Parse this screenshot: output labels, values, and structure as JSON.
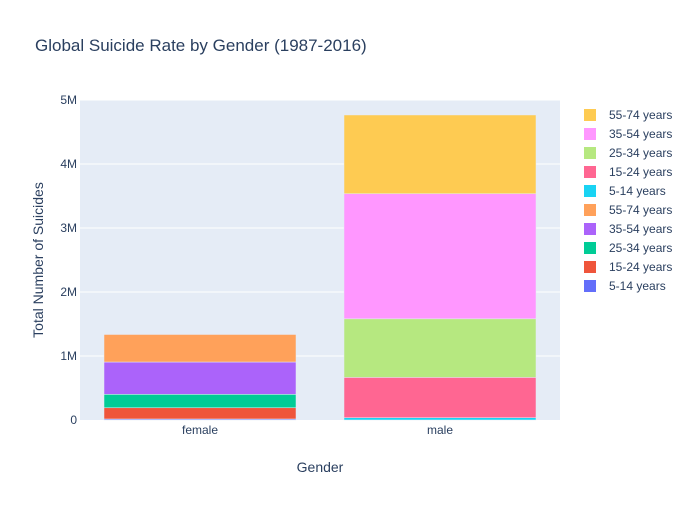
{
  "chart_data": {
    "type": "bar",
    "title": "Global Suicide Rate by Gender (1987-2016)",
    "xlabel": "Gender",
    "ylabel": "Total Number of Suicides",
    "categories": [
      "female",
      "male"
    ],
    "ylim": [
      0,
      5000000
    ],
    "y_ticks": [
      {
        "value": 0,
        "label": "0"
      },
      {
        "value": 1000000,
        "label": "1M"
      },
      {
        "value": 2000000,
        "label": "2M"
      },
      {
        "value": 3000000,
        "label": "3M"
      },
      {
        "value": 4000000,
        "label": "4M"
      },
      {
        "value": 5000000,
        "label": "5M"
      }
    ],
    "grid": true,
    "legend_position": "right",
    "series": [
      {
        "name": "5-14 years",
        "color": "#636efa",
        "values": [
          16000,
          null
        ]
      },
      {
        "name": "15-24 years",
        "color": "#ef553b",
        "values": [
          175000,
          null
        ]
      },
      {
        "name": "25-34 years",
        "color": "#00cc96",
        "values": [
          210000,
          null
        ]
      },
      {
        "name": "35-54 years",
        "color": "#ab63fa",
        "values": [
          505000,
          null
        ]
      },
      {
        "name": "55-74 years",
        "color": "#ffa15a",
        "values": [
          430000,
          null
        ]
      },
      {
        "name": "5-14 years",
        "color": "#19d3f3",
        "values": [
          null,
          36000
        ]
      },
      {
        "name": "15-24 years",
        "color": "#ff6692",
        "values": [
          null,
          630000
        ]
      },
      {
        "name": "25-34 years",
        "color": "#b6e880",
        "values": [
          null,
          915000
        ]
      },
      {
        "name": "35-54 years",
        "color": "#ff97ff",
        "values": [
          null,
          1955000
        ]
      },
      {
        "name": "55-74 years",
        "color": "#fecb52",
        "values": [
          null,
          1230000
        ]
      }
    ]
  }
}
